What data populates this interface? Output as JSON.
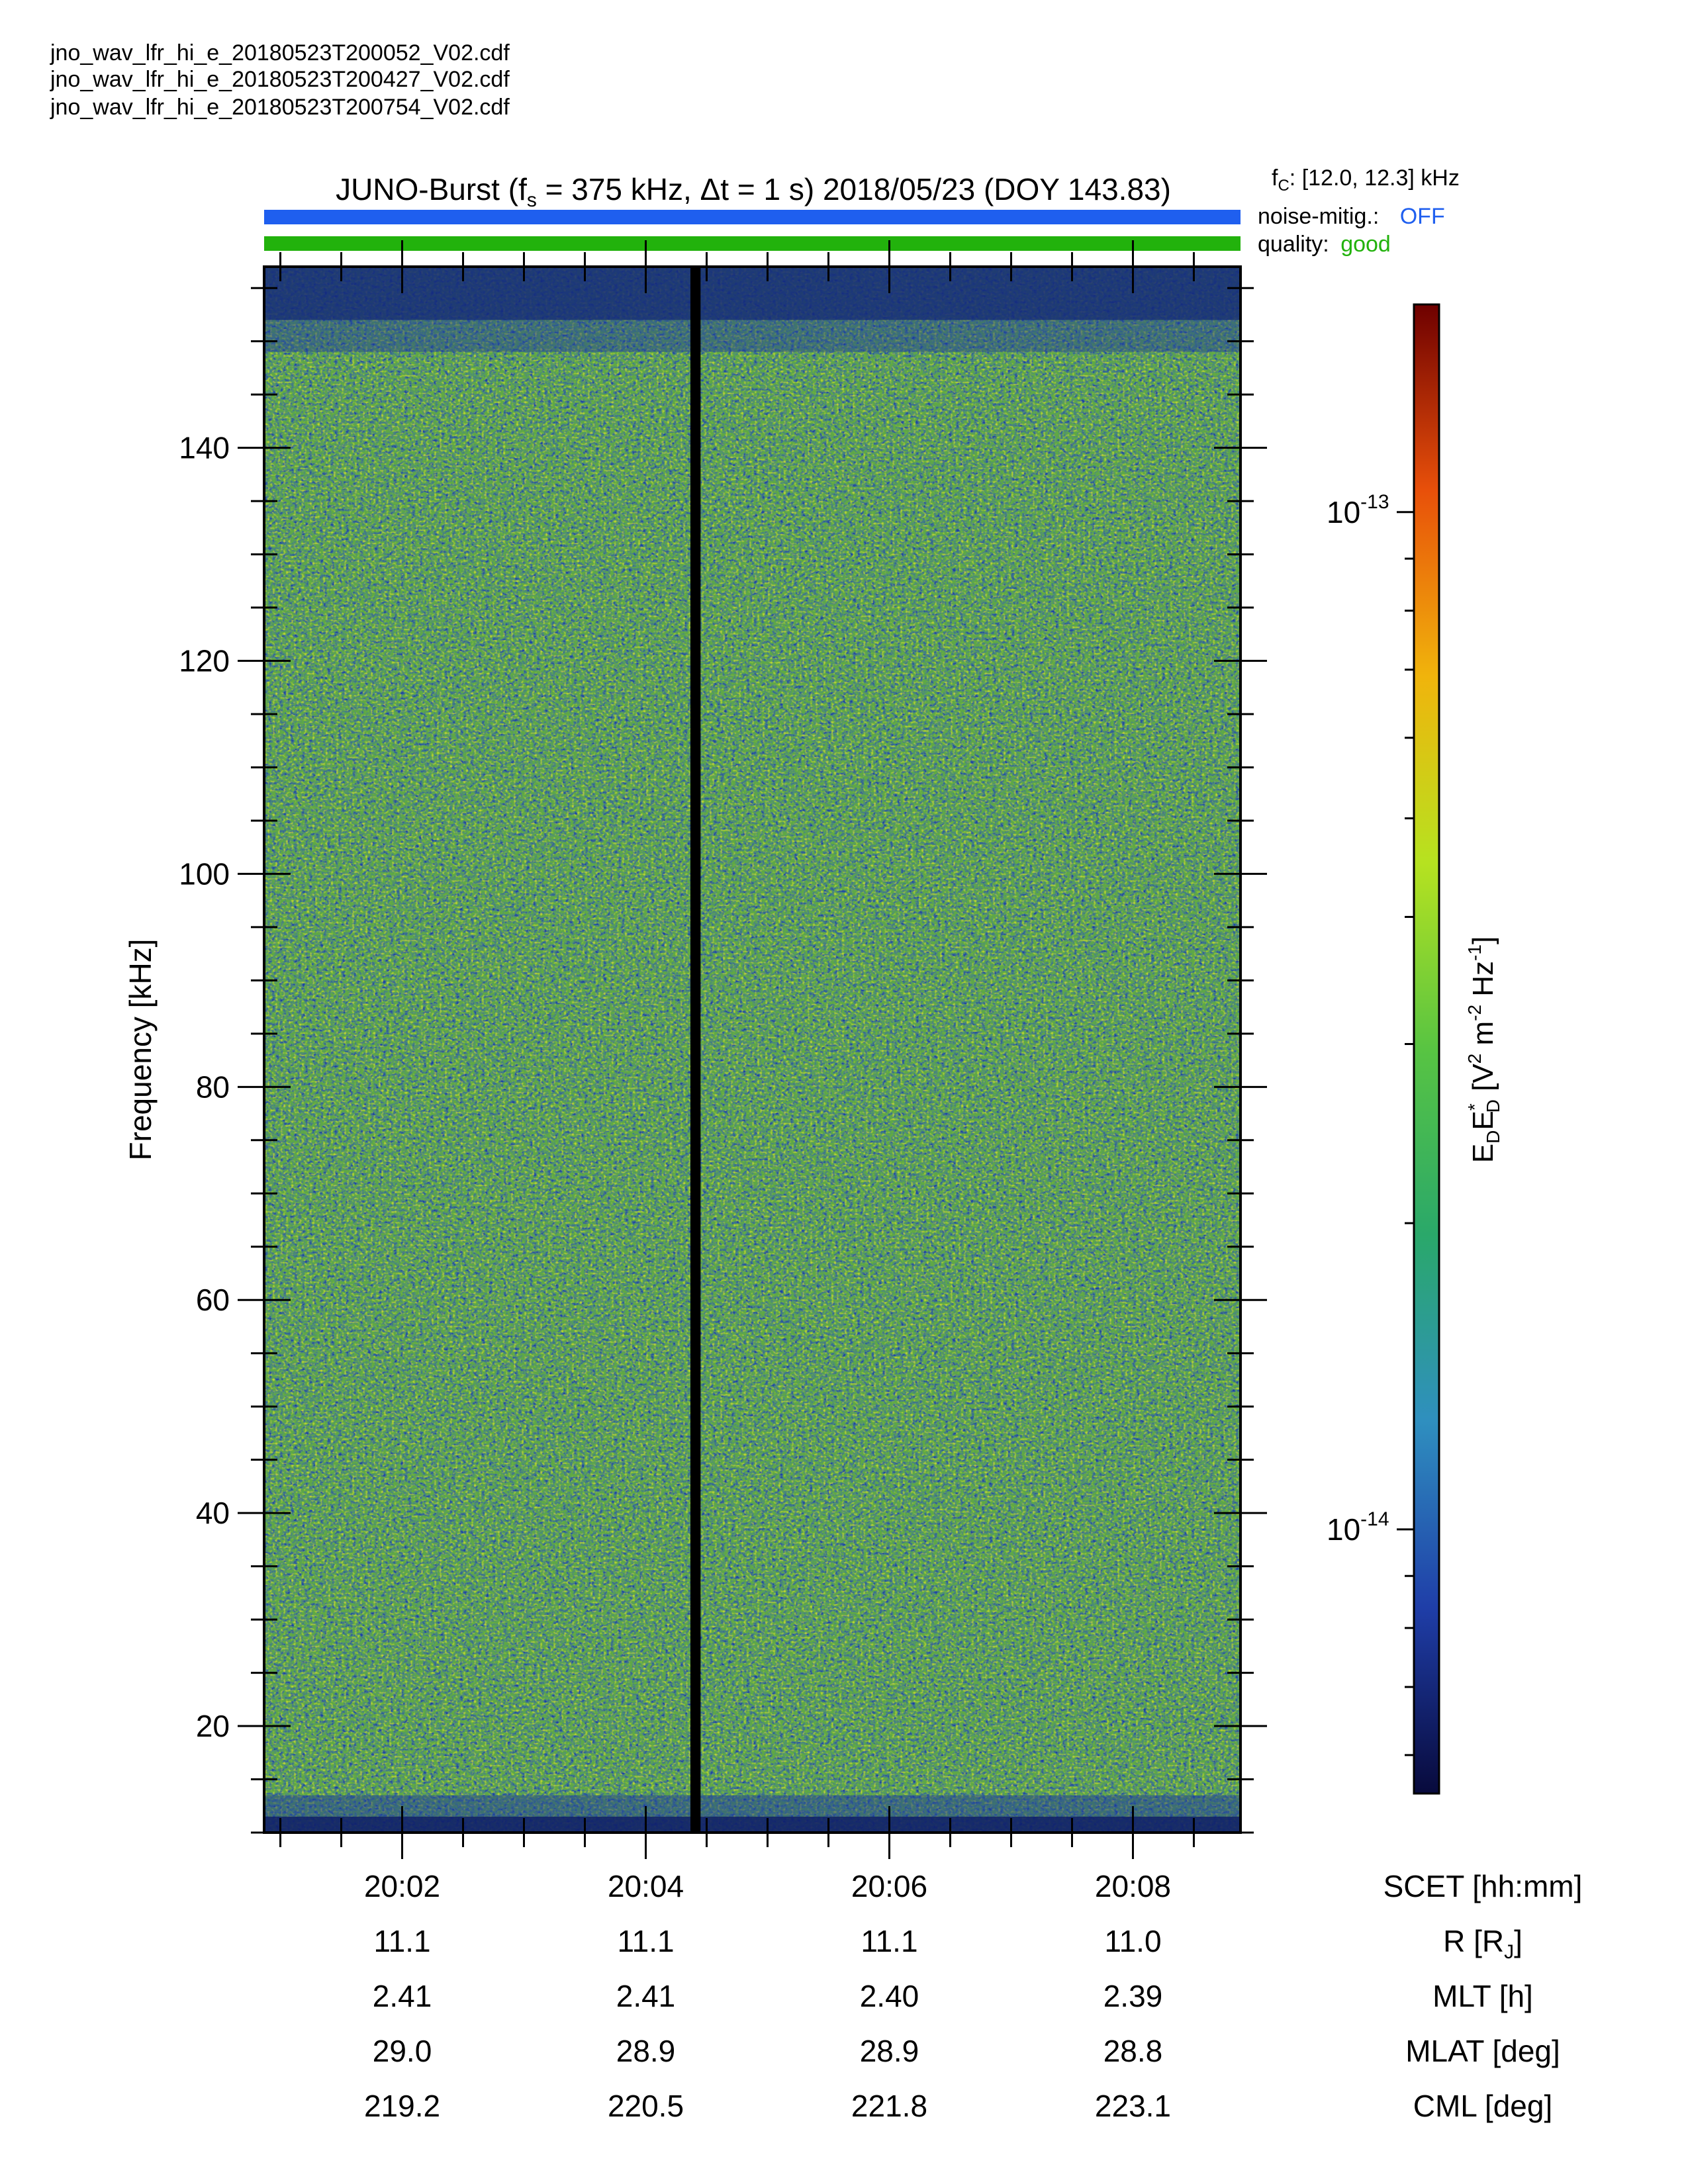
{
  "files": [
    "jno_wav_lfr_hi_e_20180523T200052_V02.cdf",
    "jno_wav_lfr_hi_e_20180523T200427_V02.cdf",
    "jno_wav_lfr_hi_e_20180523T200754_V02.cdf"
  ],
  "header": {
    "title_prefix": "JUNO-Burst (f",
    "title_fs_sub": "s",
    "title_rest": " = 375 kHz, Δt = 1 s)  2018/05/23 (DOY 143.83)",
    "fc_label": "f",
    "fc_sub": "C",
    "fc_value": ": [12.0, 12.3] kHz",
    "noise_label": "noise-mitig.:",
    "noise_value": "OFF",
    "quality_label": "quality:",
    "quality_value": "good",
    "noise_color": "#1f5fef",
    "quality_color": "#22b20c"
  },
  "chart_data": {
    "type": "heatmap",
    "ylabel": "Frequency [kHz]",
    "ylim": [
      10,
      157
    ],
    "yticks": [
      20,
      40,
      60,
      80,
      100,
      120,
      140
    ],
    "x_time_range": [
      "20:00:52",
      "20:08:53"
    ],
    "data_gap": [
      "20:04:22",
      "20:04:27"
    ],
    "colorbar": {
      "label": "E_D E*_D [V^2 m^-2 Hz^-1]",
      "scale": "log",
      "range": [
        5.5e-15,
        1.6e-13
      ],
      "ticks": [
        {
          "value": 1e-13,
          "base": "10",
          "exp": "-13"
        },
        {
          "value": 1e-14,
          "base": "10",
          "exp": "-14"
        }
      ],
      "colors": [
        "#080a3c",
        "#1f3ea8",
        "#2f8fbf",
        "#2aa86a",
        "#58c442",
        "#b6e220",
        "#f0b40c",
        "#e8500a",
        "#6e0000"
      ]
    },
    "ephemeris": {
      "labels": [
        "SCET [hh:mm]",
        "R [R_J]",
        "MLT [h]",
        "MLAT [deg]",
        "CML [deg]"
      ],
      "columns": [
        {
          "scet": "20:02",
          "r": "11.1",
          "mlt": "2.41",
          "mlat": "29.0",
          "cml": "219.2"
        },
        {
          "scet": "20:04",
          "r": "11.1",
          "mlt": "2.41",
          "mlat": "28.9",
          "cml": "220.5"
        },
        {
          "scet": "20:06",
          "r": "11.1",
          "mlt": "2.40",
          "mlat": "28.9",
          "cml": "221.8"
        },
        {
          "scet": "20:08",
          "r": "11.0",
          "mlt": "2.39",
          "mlat": "28.8",
          "cml": "223.1"
        }
      ]
    }
  }
}
